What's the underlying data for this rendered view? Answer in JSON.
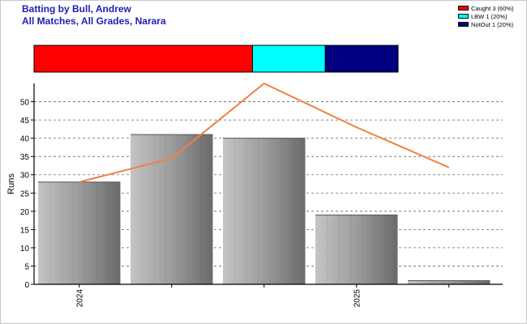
{
  "chart_data": {
    "type": "bar",
    "title": "Batting by Bull, Andrew",
    "subtitle": "All Matches, All Grades, Narara",
    "ylabel": "Runs",
    "xlabel": "",
    "ylim": [
      0,
      55
    ],
    "yticks": [
      0,
      5,
      10,
      15,
      20,
      25,
      30,
      35,
      40,
      45,
      50
    ],
    "grid": true,
    "categories": [
      "2024",
      "",
      "",
      "2025",
      ""
    ],
    "values": [
      28,
      41,
      40,
      19,
      1
    ],
    "line": [
      28,
      34.5,
      55,
      43,
      32
    ],
    "line_color": "#f08040",
    "dismissals": [
      {
        "label": "Caught 3 (60%)",
        "percent": 60,
        "color": "#ff0000"
      },
      {
        "label": "LBW 1 (20%)",
        "percent": 20,
        "color": "#00ffff"
      },
      {
        "label": "NotOut 1 (20%)",
        "percent": 20,
        "color": "#000080"
      }
    ],
    "legend_position": "top-right"
  }
}
